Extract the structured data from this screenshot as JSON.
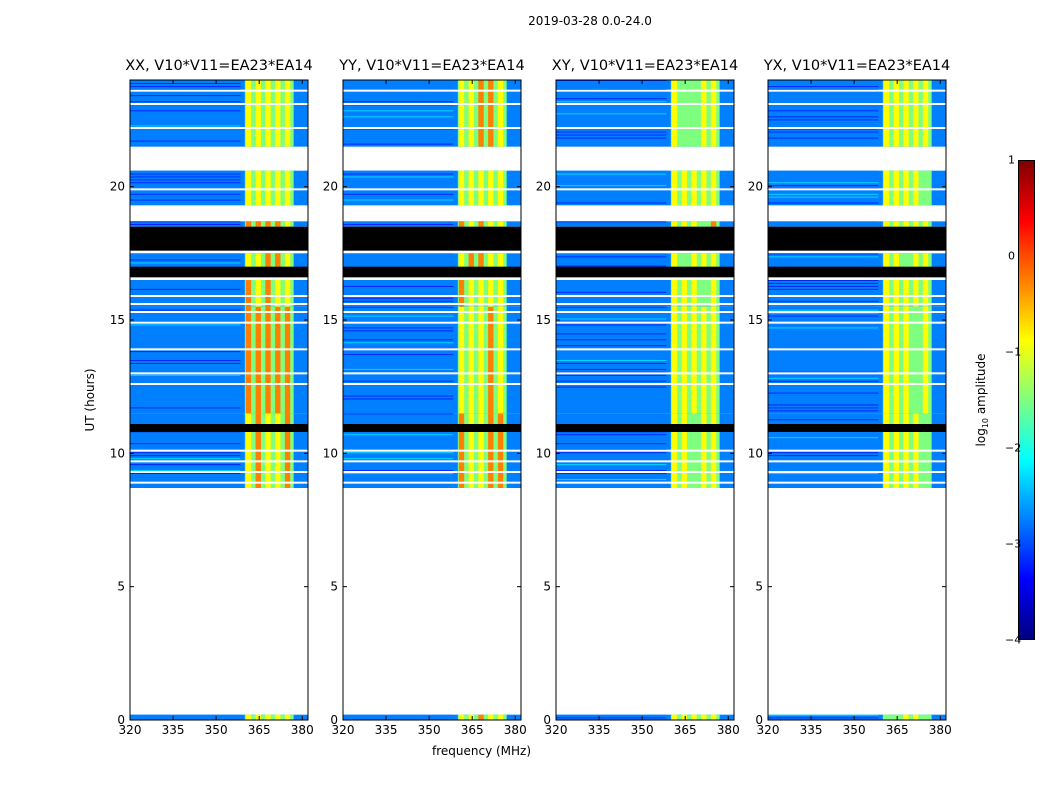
{
  "figure": {
    "suptitle": "2019-03-28 0.0-24.0",
    "xlabel": "frequency (MHz)",
    "ylabel": "UT (hours)"
  },
  "colorbar": {
    "label_prefix": "log",
    "label_sub": "10",
    "label_suffix": " amplitude",
    "ticks": [
      "1",
      "0",
      "−1",
      "−2",
      "−3",
      "−4"
    ],
    "range": [
      -4,
      1
    ],
    "colors": [
      "#00007f",
      "#0000ff",
      "#007fff",
      "#00ffff",
      "#7fff7f",
      "#ffff00",
      "#ff7f00",
      "#ff0000",
      "#7f0000"
    ]
  },
  "chart_data": {
    "type": "heatmap",
    "title": "2019-03-28 0.0-24.0",
    "xlabel": "frequency (MHz)",
    "ylabel": "UT (hours)",
    "xlim": [
      320,
      382
    ],
    "ylim": [
      0,
      24
    ],
    "xticks": [
      320,
      335,
      350,
      365,
      380
    ],
    "yticks": [
      0,
      5,
      10,
      15,
      20
    ],
    "clim": [
      -4,
      1
    ],
    "panels": [
      {
        "title": "XX, V10*V11=EA23*EA14",
        "band_mhz": [
          360,
          377
        ],
        "band_level": -0.6
      },
      {
        "title": "YY, V10*V11=EA23*EA14",
        "band_mhz": [
          360,
          377
        ],
        "band_level": -0.7
      },
      {
        "title": "XY, V10*V11=EA23*EA14",
        "band_mhz": [
          360,
          377
        ],
        "band_level": -0.9
      },
      {
        "title": "YX, V10*V11=EA23*EA14",
        "band_mhz": [
          360,
          377
        ],
        "band_level": -1.0
      }
    ],
    "baseline_level": -2.8,
    "data_intervals_ut": [
      [
        0.0,
        0.2
      ],
      [
        8.7,
        11.5
      ],
      [
        11.5,
        15.5
      ],
      [
        15.5,
        16.5
      ],
      [
        16.7,
        17.5
      ],
      [
        18.5,
        18.7
      ],
      [
        19.3,
        20.6
      ],
      [
        21.5,
        24.0
      ]
    ],
    "flagged_black_ut": [
      [
        17.6,
        18.5
      ],
      [
        16.6,
        17.0
      ],
      [
        10.8,
        11.1
      ]
    ],
    "gap_lines_ut": [
      8.9,
      9.3,
      9.7,
      10.1,
      12.6,
      13.0,
      13.9,
      14.9,
      15.3,
      15.6,
      15.9,
      19.9,
      22.2,
      23.1,
      23.6
    ]
  }
}
